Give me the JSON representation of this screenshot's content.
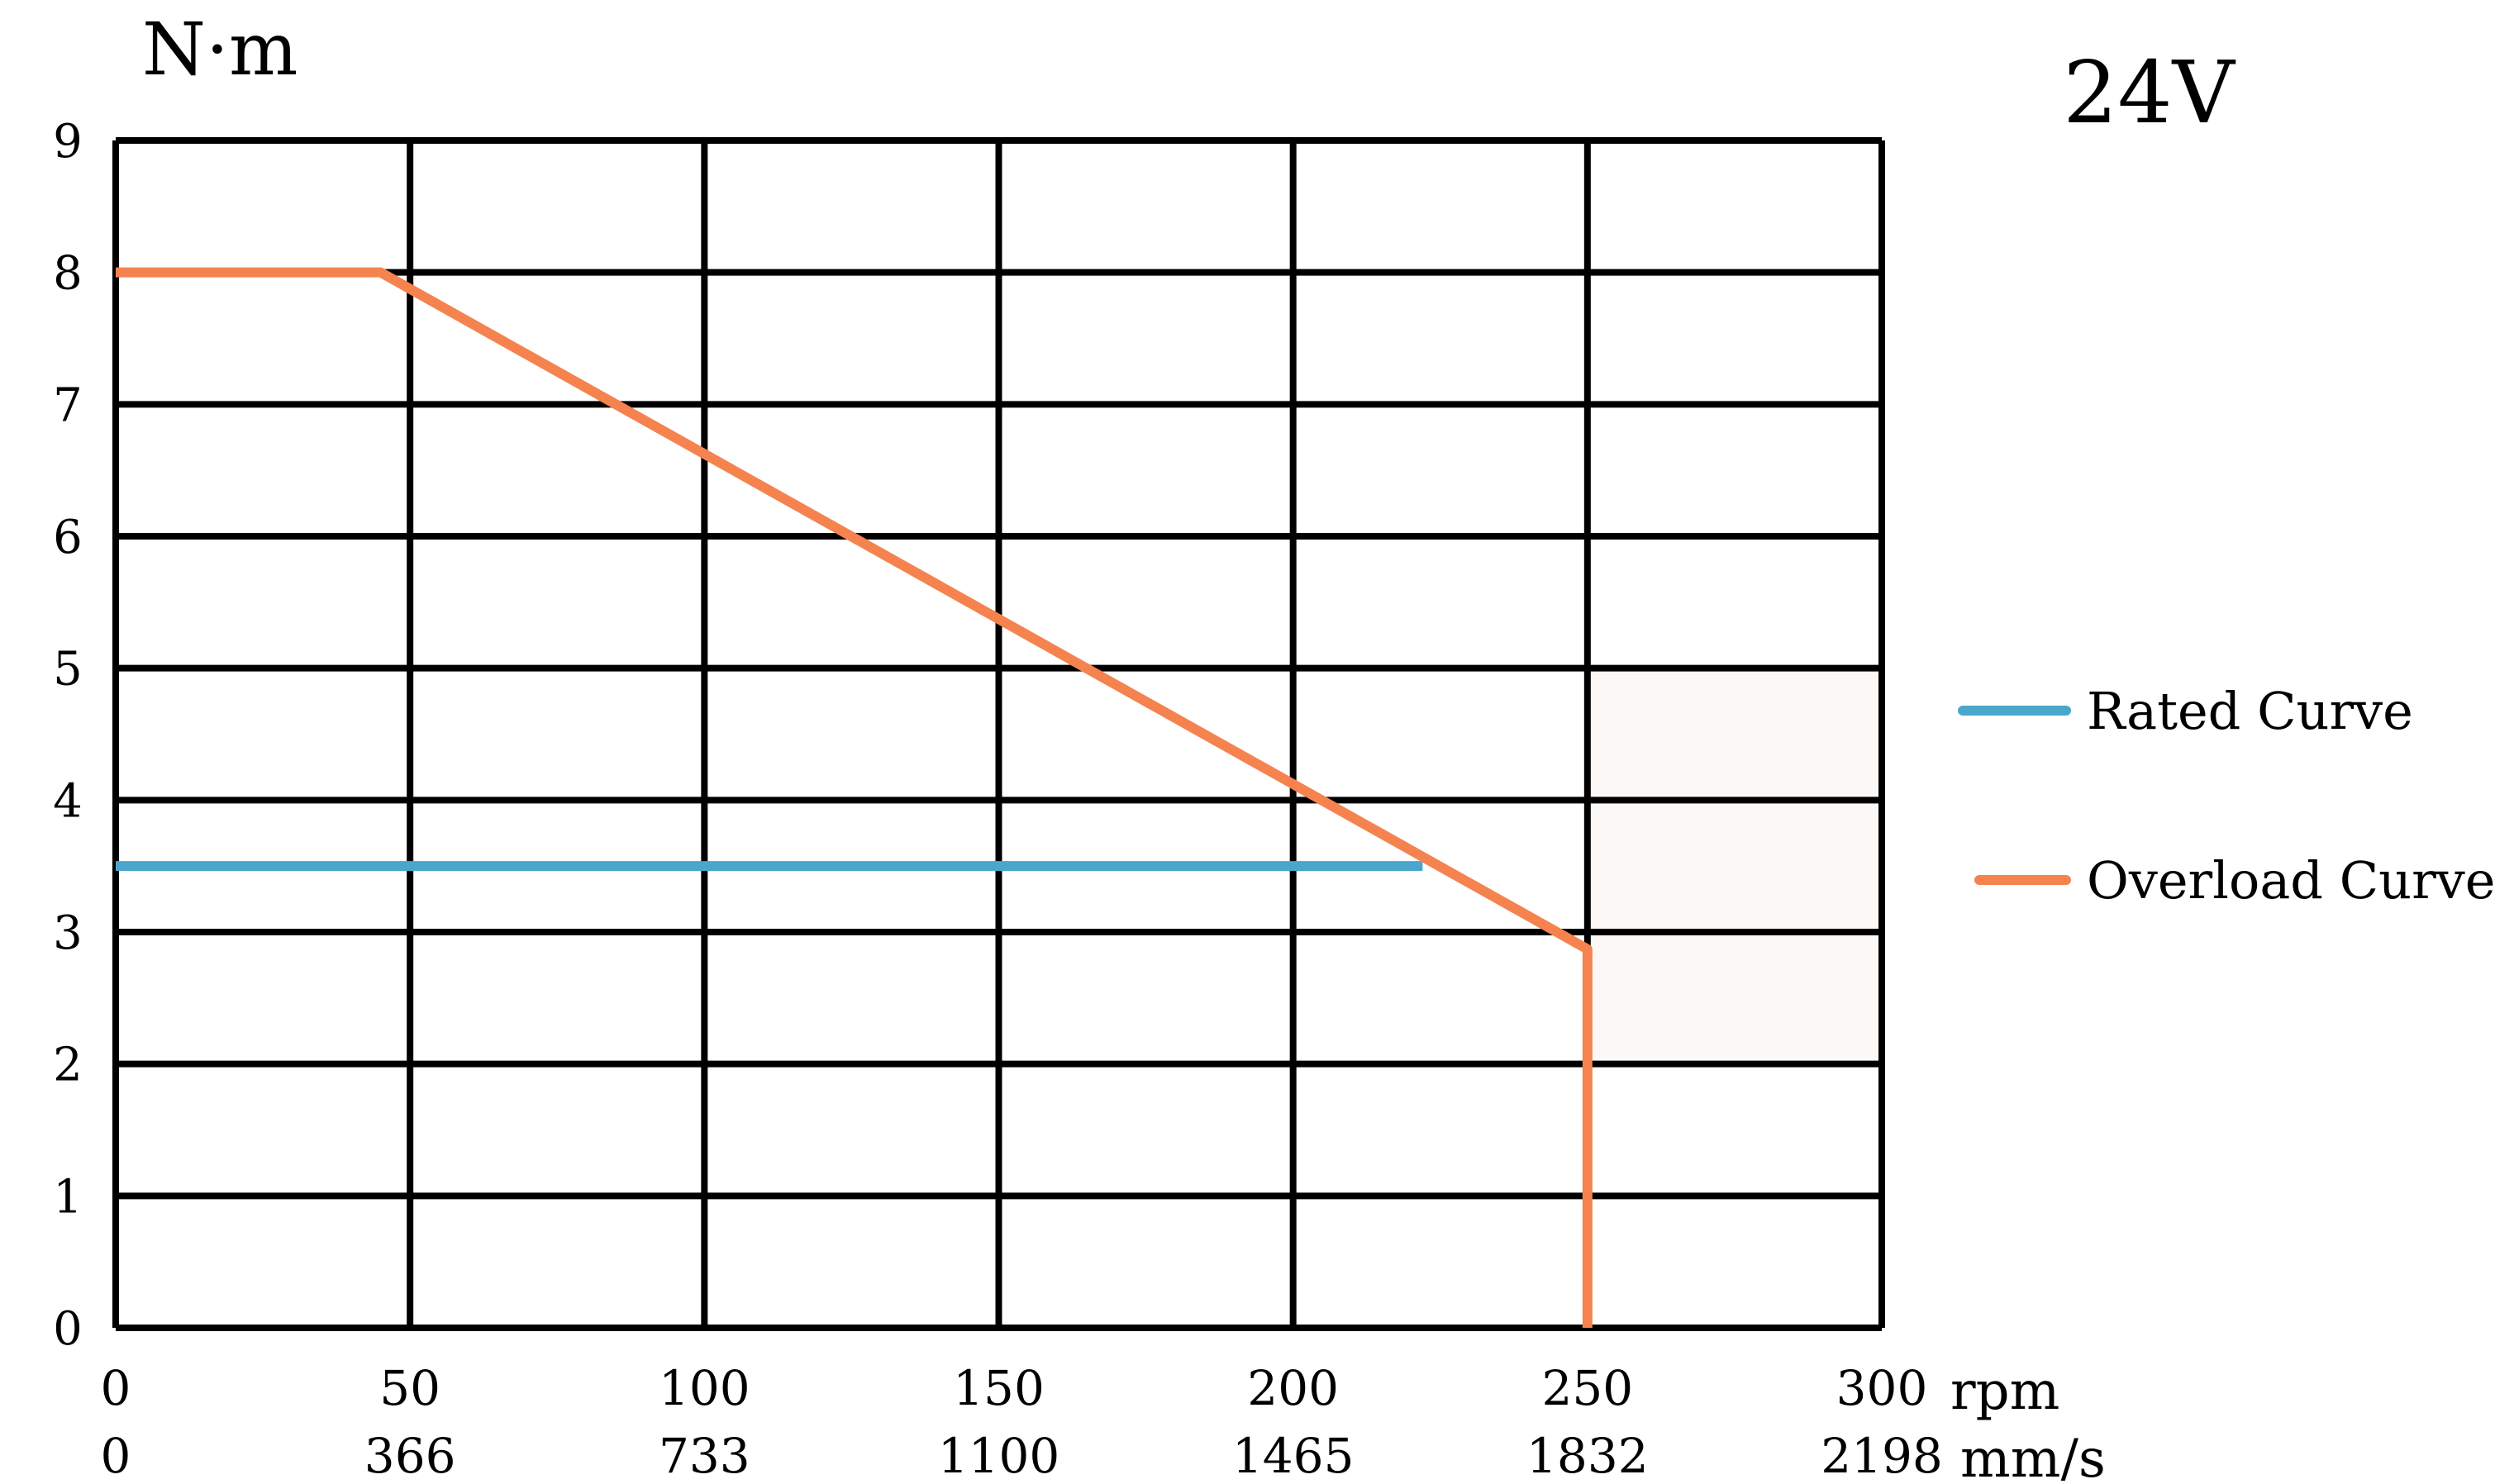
{
  "chart_data": {
    "type": "line",
    "title": "24V",
    "ylabel": "N·m",
    "xlabel_primary": "rpm",
    "xlabel_secondary": "mm/s",
    "x_ticks": [
      "0",
      "50",
      "100",
      "150",
      "200",
      "250",
      "300"
    ],
    "x_ticks_secondary": [
      "0",
      "366",
      "733",
      "1100",
      "1465",
      "1832",
      "2198"
    ],
    "y_ticks": [
      "0",
      "1",
      "2",
      "3",
      "4",
      "5",
      "6",
      "7",
      "8",
      "9"
    ],
    "xlim": [
      0,
      300
    ],
    "ylim": [
      0,
      9
    ],
    "grid": true,
    "legend_position": "right",
    "shaded_region": {
      "x": [
        250,
        300
      ],
      "y": [
        2,
        5
      ],
      "color": "#fbf8f5"
    },
    "series": [
      {
        "name": "Rated Curve",
        "color": "#4ba6cc",
        "points": [
          [
            0,
            3.5
          ],
          [
            222,
            3.5
          ]
        ]
      },
      {
        "name": "Overload Curve",
        "color": "#f5834f",
        "points": [
          [
            0,
            8
          ],
          [
            45,
            8
          ],
          [
            250,
            2.87
          ],
          [
            250,
            0
          ]
        ]
      }
    ]
  }
}
